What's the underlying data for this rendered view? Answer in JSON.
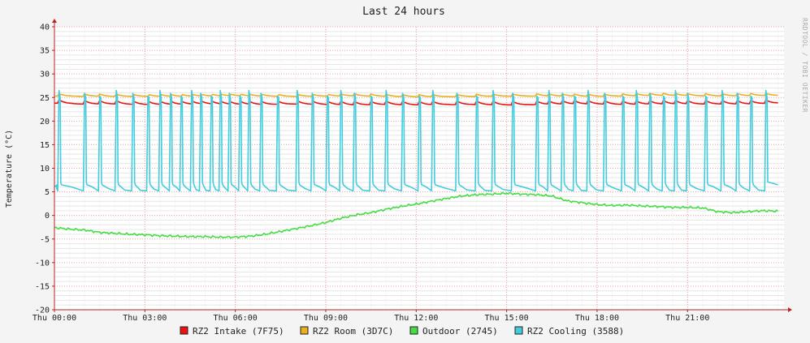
{
  "chart_data": {
    "type": "line",
    "title": "Last 24 hours",
    "ylabel": "Temperature (°C)",
    "watermark": "RRDTOOL / TOBI OETIKER",
    "ylim": [
      -20,
      40
    ],
    "yticks": [
      40,
      35,
      30,
      25,
      20,
      15,
      10,
      5,
      0,
      -5,
      -10,
      -15,
      -20
    ],
    "xlim_hours": [
      0,
      24.2
    ],
    "xticks": [
      {
        "h": 0,
        "label": "Thu 00:00"
      },
      {
        "h": 3,
        "label": "Thu 03:00"
      },
      {
        "h": 6,
        "label": "Thu 06:00"
      },
      {
        "h": 9,
        "label": "Thu 09:00"
      },
      {
        "h": 12,
        "label": "Thu 12:00"
      },
      {
        "h": 15,
        "label": "Thu 15:00"
      },
      {
        "h": 18,
        "label": "Thu 18:00"
      },
      {
        "h": 21,
        "label": "Thu 21:00"
      }
    ],
    "grid": true,
    "series": [
      {
        "name": "RZ2 Intake (7F75)",
        "color": "#ee1111",
        "x": [
          0,
          1,
          2,
          3,
          4,
          5,
          6,
          7,
          8,
          9,
          10,
          11,
          12,
          13,
          14,
          15,
          16,
          17,
          18,
          19,
          20,
          21,
          22,
          23,
          24
        ],
        "y": [
          23.8,
          23.6,
          23.6,
          23.5,
          23.5,
          23.6,
          23.5,
          23.5,
          23.6,
          23.5,
          23.4,
          23.5,
          23.4,
          23.5,
          23.5,
          23.4,
          23.5,
          23.6,
          23.6,
          23.5,
          23.6,
          23.6,
          23.6,
          23.6,
          23.8
        ],
        "sawtooth": true
      },
      {
        "name": "RZ2 Room (3D7C)",
        "color": "#e8b020",
        "x": [
          0,
          2,
          4,
          6,
          8,
          10,
          12,
          14,
          16,
          18,
          20,
          22,
          24
        ],
        "y": [
          25.3,
          25.2,
          25.2,
          25.3,
          25.2,
          25.3,
          25.1,
          25.2,
          25.3,
          25.2,
          25.4,
          25.3,
          25.4
        ],
        "sawtooth": false
      },
      {
        "name": "Outdoor (2745)",
        "color": "#44dd44",
        "x": [
          0,
          0.5,
          1,
          1.5,
          2,
          2.5,
          3,
          3.5,
          4,
          4.5,
          5,
          5.5,
          6,
          6.5,
          7,
          7.5,
          8,
          8.5,
          9,
          9.5,
          10,
          10.5,
          11,
          11.5,
          12,
          12.5,
          13,
          13.5,
          14,
          14.5,
          15,
          15.5,
          16,
          16.5,
          17,
          17.5,
          18,
          18.5,
          19,
          19.5,
          20,
          20.5,
          21,
          21.5,
          22,
          22.5,
          23,
          23.5,
          24
        ],
        "y": [
          -2.6,
          -2.9,
          -3.1,
          -3.6,
          -3.8,
          -4.0,
          -4.1,
          -4.3,
          -4.4,
          -4.5,
          -4.5,
          -4.6,
          -4.6,
          -4.4,
          -4.0,
          -3.4,
          -2.8,
          -2.2,
          -1.5,
          -0.6,
          0.1,
          0.6,
          1.3,
          1.9,
          2.4,
          3.0,
          3.6,
          4.1,
          4.4,
          4.5,
          4.7,
          4.5,
          4.4,
          4.1,
          3.1,
          2.7,
          2.3,
          2.1,
          2.2,
          2.0,
          1.9,
          1.7,
          1.7,
          1.6,
          0.8,
          0.6,
          0.8,
          1.0,
          0.9
        ],
        "sawtooth": false
      },
      {
        "name": "RZ2 Cooling (3588)",
        "color": "#44ccdd",
        "baseline": 5.5,
        "peak": 26.5,
        "spike_hours": [
          0.15,
          1.0,
          1.5,
          2.05,
          2.6,
          3.1,
          3.5,
          3.85,
          4.2,
          4.55,
          4.85,
          5.2,
          5.5,
          5.8,
          6.15,
          6.45,
          6.85,
          7.4,
          8.05,
          8.55,
          9.05,
          9.5,
          9.95,
          10.5,
          11.0,
          11.55,
          12.1,
          12.55,
          13.35,
          14.0,
          14.55,
          15.2,
          16.0,
          16.4,
          16.85,
          17.25,
          17.7,
          18.25,
          18.85,
          19.3,
          19.75,
          20.2,
          20.6,
          21.0,
          21.6,
          22.15,
          22.65,
          23.1,
          23.6
        ]
      }
    ],
    "legend": [
      {
        "label": "RZ2 Intake (7F75)",
        "color": "#ee1111"
      },
      {
        "label": "RZ2 Room (3D7C)",
        "color": "#e8b020"
      },
      {
        "label": "Outdoor (2745)",
        "color": "#44dd44"
      },
      {
        "label": "RZ2 Cooling (3588)",
        "color": "#44ccdd"
      }
    ],
    "legend_position": "bottom"
  }
}
